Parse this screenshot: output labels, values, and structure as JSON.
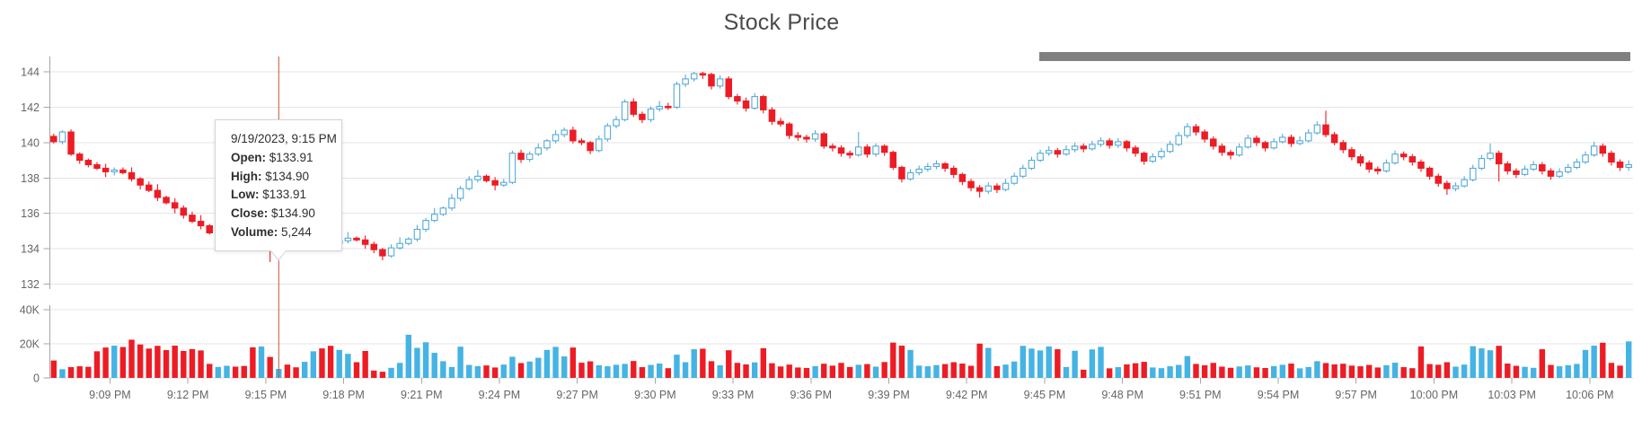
{
  "title": "Stock Price",
  "colors": {
    "candle_up_stroke": "#54aadc",
    "candle_up_fill": "#ffffff",
    "candle_down": "#ed1c24",
    "volume_up": "#45b3e4",
    "volume_down": "#ed1c24",
    "crosshair": "#c8503f",
    "grid": "#e4e4e4",
    "axis_line": "#a6a6a6",
    "axis_text": "#666666",
    "scrollbar": "#808080",
    "title_text": "#4a4a4a"
  },
  "tooltip": {
    "date_time": "9/19/2023, 9:15 PM",
    "rows": [
      {
        "label": "Open:",
        "value": "$133.91"
      },
      {
        "label": "High:",
        "value": "$134.90"
      },
      {
        "label": "Low:",
        "value": "$133.91"
      },
      {
        "label": "Close:",
        "value": "$134.90"
      },
      {
        "label": "Volume:",
        "value": "5,244"
      }
    ]
  },
  "price_axis": {
    "labels": [
      "144",
      "142",
      "140",
      "138",
      "136",
      "134",
      "132"
    ],
    "values": [
      144,
      142,
      140,
      138,
      136,
      134,
      132
    ]
  },
  "volume_axis": {
    "labels": [
      "40K",
      "20K",
      "0"
    ],
    "values": [
      40000,
      20000,
      0
    ]
  },
  "time_axis": {
    "labels": [
      "9:09 PM",
      "9:12 PM",
      "9:15 PM",
      "9:18 PM",
      "9:21 PM",
      "9:24 PM",
      "9:27 PM",
      "9:30 PM",
      "9:33 PM",
      "9:36 PM",
      "9:39 PM",
      "9:42 PM",
      "9:45 PM",
      "9:48 PM",
      "9:51 PM",
      "9:54 PM",
      "9:57 PM",
      "10:00 PM",
      "10:03 PM",
      "10:06 PM"
    ],
    "first_label_candle_index": 7,
    "candles_per_label": 9
  },
  "chart_data": {
    "type": "candlestick",
    "series": [
      "price_ohlc",
      "volume"
    ],
    "title": "Stock Price",
    "ylim_price": [
      132,
      144
    ],
    "ylim_volume": [
      0,
      40000
    ],
    "highlight_index": 26,
    "highlight_tooltip": {
      "time": "9/19/2023, 9:15 PM",
      "open": 133.91,
      "high": 134.9,
      "low": 133.91,
      "close": 134.9,
      "volume": 5244
    },
    "candles": [
      [
        140.35,
        140.5,
        139.95,
        140.05,
        10200
      ],
      [
        140.05,
        140.7,
        139.9,
        140.6,
        5100
      ],
      [
        140.6,
        140.75,
        139.25,
        139.35,
        6300
      ],
      [
        139.35,
        139.45,
        138.8,
        139.0,
        6800
      ],
      [
        139.0,
        139.1,
        138.6,
        138.75,
        6500
      ],
      [
        138.75,
        138.9,
        138.45,
        138.55,
        15600
      ],
      [
        138.55,
        138.8,
        138.05,
        138.35,
        17800
      ],
      [
        138.35,
        138.6,
        138.15,
        138.45,
        18900
      ],
      [
        138.45,
        138.6,
        138.2,
        138.3,
        18100
      ],
      [
        138.3,
        138.6,
        137.8,
        137.95,
        22400
      ],
      [
        137.95,
        138.05,
        137.35,
        137.6,
        19600
      ],
      [
        137.6,
        137.8,
        137.2,
        137.3,
        17200
      ],
      [
        137.3,
        137.65,
        136.7,
        136.9,
        18800
      ],
      [
        136.9,
        137.0,
        136.5,
        136.6,
        16300
      ],
      [
        136.6,
        136.85,
        136.0,
        136.3,
        18900
      ],
      [
        136.3,
        136.45,
        135.7,
        135.9,
        15800
      ],
      [
        135.9,
        136.1,
        135.45,
        135.55,
        16900
      ],
      [
        135.55,
        135.9,
        135.1,
        135.3,
        16100
      ],
      [
        135.3,
        135.4,
        134.8,
        134.9,
        8200
      ],
      [
        134.9,
        135.6,
        134.75,
        135.3,
        6400
      ],
      [
        135.3,
        135.65,
        135.05,
        135.55,
        7100
      ],
      [
        135.55,
        135.75,
        135.25,
        135.35,
        6600
      ],
      [
        135.35,
        135.7,
        134.75,
        134.95,
        7000
      ],
      [
        134.95,
        135.05,
        134.65,
        134.75,
        17900
      ],
      [
        134.75,
        135.1,
        134.45,
        134.85,
        18400
      ],
      [
        134.85,
        135.0,
        133.25,
        133.91,
        12300
      ],
      [
        133.91,
        134.9,
        133.91,
        134.9,
        5244
      ],
      [
        134.9,
        135.0,
        134.35,
        134.55,
        7800
      ],
      [
        134.55,
        134.75,
        134.1,
        134.3,
        6200
      ],
      [
        134.3,
        134.6,
        134.15,
        134.45,
        9400
      ],
      [
        134.45,
        134.85,
        134.3,
        134.6,
        15600
      ],
      [
        134.6,
        134.7,
        134.2,
        134.4,
        17300
      ],
      [
        134.4,
        134.65,
        134.05,
        134.3,
        18800
      ],
      [
        134.3,
        134.6,
        134.2,
        134.45,
        16400
      ],
      [
        134.45,
        134.95,
        134.3,
        134.6,
        14100
      ],
      [
        134.6,
        134.7,
        134.4,
        134.5,
        9200
      ],
      [
        134.5,
        134.75,
        134.0,
        134.25,
        15800
      ],
      [
        134.25,
        134.4,
        133.75,
        133.95,
        4300
      ],
      [
        133.95,
        134.05,
        133.35,
        133.6,
        3600
      ],
      [
        133.6,
        134.25,
        133.5,
        134.05,
        5900
      ],
      [
        134.05,
        134.65,
        133.95,
        134.3,
        8800
      ],
      [
        134.3,
        134.65,
        134.2,
        134.55,
        25300
      ],
      [
        134.55,
        135.35,
        134.4,
        135.1,
        17600
      ],
      [
        135.1,
        135.75,
        134.95,
        135.6,
        20900
      ],
      [
        135.6,
        136.3,
        135.5,
        135.95,
        14700
      ],
      [
        135.95,
        136.4,
        135.85,
        136.3,
        9800
      ],
      [
        136.3,
        137.1,
        136.15,
        136.85,
        6400
      ],
      [
        136.85,
        137.55,
        136.7,
        137.4,
        18300
      ],
      [
        137.4,
        138.1,
        137.3,
        137.9,
        7600
      ],
      [
        137.9,
        138.45,
        137.75,
        138.1,
        6900
      ],
      [
        138.1,
        138.2,
        137.75,
        137.85,
        7300
      ],
      [
        137.85,
        138.05,
        137.3,
        137.6,
        6100
      ],
      [
        137.6,
        137.95,
        137.5,
        137.75,
        7800
      ],
      [
        137.75,
        139.55,
        137.65,
        139.4,
        12400
      ],
      [
        139.4,
        139.6,
        138.85,
        139.05,
        8700
      ],
      [
        139.05,
        139.5,
        138.9,
        139.35,
        9600
      ],
      [
        139.35,
        139.95,
        139.25,
        139.7,
        11800
      ],
      [
        139.7,
        140.2,
        139.55,
        140.1,
        16400
      ],
      [
        140.1,
        140.7,
        139.95,
        140.45,
        18200
      ],
      [
        140.45,
        140.85,
        140.3,
        140.7,
        12600
      ],
      [
        140.7,
        140.9,
        139.95,
        140.1,
        17800
      ],
      [
        140.1,
        140.25,
        139.85,
        140.0,
        8900
      ],
      [
        140.0,
        140.1,
        139.35,
        139.55,
        9700
      ],
      [
        139.55,
        140.4,
        139.45,
        140.2,
        7400
      ],
      [
        140.2,
        141.1,
        140.05,
        140.95,
        6800
      ],
      [
        140.95,
        141.5,
        140.8,
        141.3,
        7700
      ],
      [
        141.3,
        142.45,
        141.2,
        142.3,
        8200
      ],
      [
        142.3,
        142.5,
        141.45,
        141.6,
        9900
      ],
      [
        141.6,
        141.75,
        141.1,
        141.3,
        6300
      ],
      [
        141.3,
        142.05,
        141.15,
        141.9,
        7600
      ],
      [
        141.9,
        142.35,
        141.75,
        142.05,
        8400
      ],
      [
        142.05,
        142.25,
        141.85,
        142.0,
        5700
      ],
      [
        142.0,
        143.45,
        141.9,
        143.3,
        13600
      ],
      [
        143.3,
        143.85,
        143.15,
        143.6,
        9200
      ],
      [
        143.6,
        144.0,
        143.45,
        143.9,
        16800
      ],
      [
        143.9,
        144.0,
        143.6,
        143.85,
        17100
      ],
      [
        143.85,
        143.95,
        143.0,
        143.2,
        9800
      ],
      [
        143.2,
        143.8,
        143.05,
        143.6,
        7400
      ],
      [
        143.6,
        143.75,
        142.45,
        142.6,
        16200
      ],
      [
        142.6,
        142.75,
        142.15,
        142.35,
        8800
      ],
      [
        142.35,
        142.55,
        141.75,
        141.95,
        7900
      ],
      [
        141.95,
        142.8,
        141.85,
        142.6,
        9100
      ],
      [
        142.6,
        142.7,
        141.65,
        141.85,
        17400
      ],
      [
        141.85,
        142.0,
        141.0,
        141.2,
        8600
      ],
      [
        141.2,
        141.4,
        140.9,
        141.05,
        6700
      ],
      [
        141.05,
        141.15,
        140.2,
        140.4,
        7800
      ],
      [
        140.4,
        140.6,
        140.1,
        140.3,
        6100
      ],
      [
        140.3,
        140.45,
        140.0,
        140.2,
        5800
      ],
      [
        140.2,
        140.7,
        140.05,
        140.5,
        6900
      ],
      [
        140.5,
        140.6,
        139.65,
        139.8,
        8300
      ],
      [
        139.8,
        139.95,
        139.5,
        139.7,
        7200
      ],
      [
        139.7,
        139.85,
        139.2,
        139.4,
        8800
      ],
      [
        139.4,
        139.55,
        139.1,
        139.3,
        6400
      ],
      [
        139.3,
        140.6,
        139.2,
        139.75,
        7700
      ],
      [
        139.75,
        139.9,
        139.15,
        139.35,
        8100
      ],
      [
        139.35,
        139.95,
        139.2,
        139.8,
        6600
      ],
      [
        139.8,
        139.9,
        139.25,
        139.45,
        9300
      ],
      [
        139.45,
        139.55,
        138.45,
        138.6,
        20700
      ],
      [
        138.6,
        138.7,
        137.75,
        137.95,
        18900
      ],
      [
        137.95,
        138.5,
        137.85,
        138.3,
        16400
      ],
      [
        138.3,
        138.7,
        138.15,
        138.5,
        7200
      ],
      [
        138.5,
        138.85,
        138.35,
        138.65,
        6800
      ],
      [
        138.65,
        139.0,
        138.5,
        138.8,
        7500
      ],
      [
        138.8,
        138.9,
        138.35,
        138.55,
        8100
      ],
      [
        138.55,
        138.7,
        138.0,
        138.2,
        9200
      ],
      [
        138.2,
        138.3,
        137.6,
        137.8,
        8400
      ],
      [
        137.8,
        137.95,
        137.25,
        137.45,
        7100
      ],
      [
        137.45,
        137.6,
        136.9,
        137.25,
        20100
      ],
      [
        137.25,
        137.75,
        137.1,
        137.55,
        17600
      ],
      [
        137.55,
        137.7,
        137.15,
        137.35,
        6900
      ],
      [
        137.35,
        137.95,
        137.25,
        137.7,
        7800
      ],
      [
        137.7,
        138.3,
        137.6,
        138.1,
        9600
      ],
      [
        138.1,
        138.75,
        138.0,
        138.55,
        18800
      ],
      [
        138.55,
        139.2,
        138.45,
        139.0,
        17200
      ],
      [
        139.0,
        139.6,
        138.9,
        139.4,
        16100
      ],
      [
        139.4,
        139.8,
        139.25,
        139.55,
        18400
      ],
      [
        139.55,
        139.7,
        139.15,
        139.35,
        16800
      ],
      [
        139.35,
        139.85,
        139.25,
        139.6,
        6400
      ],
      [
        139.6,
        140.0,
        139.45,
        139.8,
        15900
      ],
      [
        139.8,
        139.95,
        139.45,
        139.65,
        4800
      ],
      [
        139.65,
        140.1,
        139.55,
        139.9,
        16700
      ],
      [
        139.9,
        140.3,
        139.75,
        140.1,
        18200
      ],
      [
        140.1,
        140.25,
        139.65,
        139.85,
        5600
      ],
      [
        139.85,
        140.25,
        139.7,
        140.05,
        6300
      ],
      [
        140.05,
        140.15,
        139.5,
        139.7,
        7900
      ],
      [
        139.7,
        139.85,
        139.2,
        139.4,
        8600
      ],
      [
        139.4,
        139.5,
        138.75,
        138.95,
        9400
      ],
      [
        138.95,
        139.4,
        138.85,
        139.2,
        6100
      ],
      [
        139.2,
        139.7,
        139.05,
        139.5,
        5700
      ],
      [
        139.5,
        140.1,
        139.4,
        139.9,
        6800
      ],
      [
        139.9,
        140.6,
        139.8,
        140.4,
        7600
      ],
      [
        140.4,
        141.1,
        140.25,
        140.9,
        12800
      ],
      [
        140.9,
        141.05,
        140.4,
        140.6,
        8200
      ],
      [
        140.6,
        140.75,
        140.0,
        140.2,
        7400
      ],
      [
        140.2,
        140.35,
        139.6,
        139.8,
        8800
      ],
      [
        139.8,
        139.95,
        139.25,
        139.45,
        6600
      ],
      [
        139.45,
        139.6,
        139.05,
        139.3,
        5900
      ],
      [
        139.3,
        139.95,
        139.2,
        139.75,
        6700
      ],
      [
        139.75,
        140.45,
        139.65,
        140.25,
        7300
      ],
      [
        140.25,
        140.4,
        139.8,
        140.0,
        6200
      ],
      [
        140.0,
        140.1,
        139.5,
        139.7,
        5800
      ],
      [
        139.7,
        140.25,
        139.6,
        140.05,
        6900
      ],
      [
        140.05,
        140.5,
        139.95,
        140.3,
        7700
      ],
      [
        140.3,
        140.45,
        139.75,
        139.95,
        8400
      ],
      [
        139.95,
        140.35,
        139.85,
        140.1,
        5600
      ],
      [
        140.1,
        140.75,
        140.0,
        140.55,
        6400
      ],
      [
        140.55,
        141.2,
        140.45,
        141.0,
        9800
      ],
      [
        141.0,
        141.8,
        140.3,
        140.45,
        8700
      ],
      [
        140.45,
        140.6,
        139.85,
        140.0,
        7900
      ],
      [
        140.0,
        140.15,
        139.4,
        139.6,
        8300
      ],
      [
        139.6,
        139.75,
        139.0,
        139.2,
        7200
      ],
      [
        139.2,
        139.35,
        138.65,
        138.85,
        6800
      ],
      [
        138.85,
        139.0,
        138.3,
        138.5,
        7600
      ],
      [
        138.5,
        138.65,
        138.2,
        138.4,
        6100
      ],
      [
        138.4,
        139.05,
        138.3,
        138.85,
        7400
      ],
      [
        138.85,
        139.55,
        138.75,
        139.35,
        8900
      ],
      [
        139.35,
        139.5,
        139.0,
        139.2,
        6300
      ],
      [
        139.2,
        139.35,
        138.7,
        138.9,
        5700
      ],
      [
        138.9,
        139.05,
        138.35,
        138.55,
        18400
      ],
      [
        138.55,
        138.65,
        137.9,
        138.1,
        8100
      ],
      [
        138.1,
        138.25,
        137.5,
        137.7,
        7700
      ],
      [
        137.7,
        137.85,
        137.05,
        137.4,
        9200
      ],
      [
        137.4,
        137.75,
        137.25,
        137.55,
        6600
      ],
      [
        137.55,
        138.1,
        137.45,
        137.9,
        7800
      ],
      [
        137.9,
        138.75,
        137.8,
        138.55,
        18600
      ],
      [
        138.55,
        139.3,
        138.45,
        139.1,
        17300
      ],
      [
        139.1,
        139.95,
        139.0,
        139.4,
        16200
      ],
      [
        139.4,
        139.55,
        137.8,
        138.8,
        18800
      ],
      [
        138.8,
        138.95,
        138.2,
        138.4,
        8400
      ],
      [
        138.4,
        138.55,
        138.0,
        138.2,
        7100
      ],
      [
        138.2,
        138.7,
        138.1,
        138.5,
        6500
      ],
      [
        138.5,
        138.95,
        138.4,
        138.75,
        5900
      ],
      [
        138.75,
        138.9,
        138.2,
        138.4,
        16800
      ],
      [
        138.4,
        138.55,
        137.9,
        138.1,
        7600
      ],
      [
        138.1,
        138.55,
        138.0,
        138.35,
        6800
      ],
      [
        138.35,
        138.8,
        138.25,
        138.6,
        7400
      ],
      [
        138.6,
        139.1,
        138.5,
        138.9,
        8200
      ],
      [
        138.9,
        139.5,
        138.8,
        139.3,
        16400
      ],
      [
        139.3,
        140.05,
        139.2,
        139.8,
        18900
      ],
      [
        139.8,
        139.95,
        139.2,
        139.4,
        20600
      ],
      [
        139.4,
        139.55,
        138.7,
        138.9,
        8800
      ],
      [
        138.9,
        139.05,
        138.4,
        138.6,
        7200
      ],
      [
        138.6,
        139.0,
        138.4,
        138.75,
        21400
      ]
    ]
  }
}
